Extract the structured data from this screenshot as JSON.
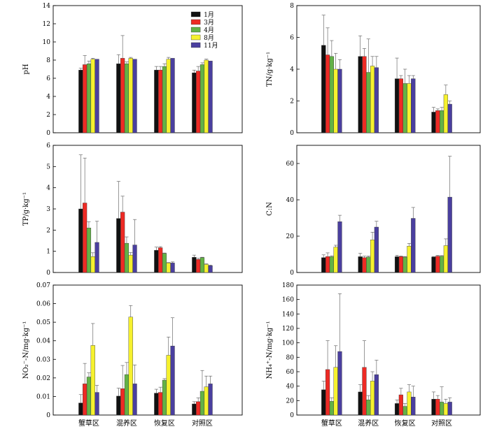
{
  "categories": [
    "蟹草区",
    "混养区",
    "恢复区",
    "对照区"
  ],
  "series_names": [
    "1月",
    "3月",
    "4月",
    "8月",
    "11月"
  ],
  "colors": [
    "#111111",
    "#ee2a24",
    "#63b246",
    "#f6f12e",
    "#4a3f9f"
  ],
  "chart_data": [
    {
      "type": "bar",
      "ylabel": "pH",
      "ylim": [
        0,
        14
      ],
      "yticks": [
        "0",
        "2",
        "4",
        "6",
        "8",
        "10",
        "12",
        "14"
      ],
      "legend": "top-center",
      "categories": [
        "蟹草区",
        "混养区",
        "恢复区",
        "对照区"
      ],
      "series": [
        {
          "name": "1月",
          "values": [
            6.9,
            7.6,
            6.9,
            6.6
          ],
          "errors": [
            0.2,
            1.0,
            0.4,
            0.3
          ]
        },
        {
          "name": "3月",
          "values": [
            7.5,
            8.2,
            6.9,
            6.8
          ],
          "errors": [
            1.0,
            2.5,
            0.4,
            0.5
          ]
        },
        {
          "name": "4月",
          "values": [
            7.6,
            7.6,
            7.3,
            7.5
          ],
          "errors": [
            0.3,
            0.2,
            0.3,
            0.2
          ]
        },
        {
          "name": "8月",
          "values": [
            8.1,
            8.2,
            8.1,
            8.0
          ],
          "errors": [
            0.1,
            0.1,
            0.2,
            0.1
          ]
        },
        {
          "name": "11月",
          "values": [
            8.1,
            8.1,
            8.2,
            7.9
          ],
          "errors": [
            0.0,
            0.0,
            0.0,
            0.0
          ]
        }
      ]
    },
    {
      "type": "bar",
      "ylabel": "TN/g·kg⁻¹",
      "ylim": [
        0,
        8
      ],
      "yticks": [
        "0",
        "2",
        "4",
        "6",
        "8"
      ],
      "categories": [
        "蟹草区",
        "混养区",
        "恢复区",
        "对照区"
      ],
      "series": [
        {
          "name": "1月",
          "values": [
            5.5,
            4.8,
            3.4,
            1.3
          ],
          "errors": [
            1.9,
            1.3,
            1.3,
            0.3
          ]
        },
        {
          "name": "3月",
          "values": [
            4.9,
            4.8,
            3.4,
            1.4
          ],
          "errors": [
            1.7,
            0.5,
            0.2,
            0.1
          ]
        },
        {
          "name": "4月",
          "values": [
            4.8,
            3.8,
            3.1,
            1.4
          ],
          "errors": [
            1.0,
            2.1,
            0.9,
            0.2
          ]
        },
        {
          "name": "8月",
          "values": [
            4.0,
            4.2,
            3.1,
            2.4
          ],
          "errors": [
            1.0,
            0.6,
            0.5,
            0.6
          ]
        },
        {
          "name": "11月",
          "values": [
            4.0,
            4.1,
            3.4,
            1.8
          ],
          "errors": [
            0.6,
            0.7,
            0.2,
            0.2
          ]
        }
      ]
    },
    {
      "type": "bar",
      "ylabel": "TP/g·kg⁻¹",
      "ylim": [
        0,
        6
      ],
      "yticks": [
        "0",
        "1",
        "2",
        "3",
        "4",
        "5",
        "6"
      ],
      "categories": [
        "蟹草区",
        "混养区",
        "恢复区",
        "对照区"
      ],
      "series": [
        {
          "name": "1月",
          "values": [
            3.0,
            2.55,
            1.05,
            0.72
          ],
          "errors": [
            2.55,
            1.75,
            0.15,
            0.1
          ]
        },
        {
          "name": "3月",
          "values": [
            3.28,
            2.85,
            1.17,
            0.62
          ],
          "errors": [
            2.12,
            0.75,
            0.05,
            0.05
          ]
        },
        {
          "name": "4月",
          "values": [
            2.1,
            1.38,
            0.9,
            0.7
          ],
          "errors": [
            0.3,
            0.3,
            0.02,
            0.02
          ]
        },
        {
          "name": "8月",
          "values": [
            0.75,
            0.82,
            0.45,
            0.38
          ],
          "errors": [
            0.18,
            0.12,
            0.02,
            0.03
          ]
        },
        {
          "name": "11月",
          "values": [
            1.42,
            1.3,
            0.45,
            0.32
          ],
          "errors": [
            1.0,
            1.2,
            0.05,
            0.03
          ]
        }
      ]
    },
    {
      "type": "bar",
      "ylabel": "C:N",
      "ylim": [
        0,
        70
      ],
      "yticks": [
        "0",
        "20",
        "40",
        "60"
      ],
      "categories": [
        "蟹草区",
        "混养区",
        "恢复区",
        "对照区"
      ],
      "series": [
        {
          "name": "1月",
          "values": [
            8.2,
            8.7,
            8.7,
            8.5
          ],
          "errors": [
            1.5,
            1.8,
            0.8,
            0.3
          ]
        },
        {
          "name": "3月",
          "values": [
            8.8,
            8.2,
            8.8,
            9.0
          ],
          "errors": [
            2.0,
            0.8,
            0.3,
            0.4
          ]
        },
        {
          "name": "4月",
          "values": [
            8.7,
            8.5,
            8.5,
            9.0
          ],
          "errors": [
            0.5,
            0.5,
            0.3,
            0.3
          ]
        },
        {
          "name": "8月",
          "values": [
            14.0,
            18.0,
            14.5,
            14.8
          ],
          "errors": [
            1.0,
            4.2,
            1.5,
            3.7
          ]
        },
        {
          "name": "11月",
          "values": [
            28.0,
            25.0,
            29.8,
            41.5
          ],
          "errors": [
            3.5,
            3.2,
            6.0,
            22.5
          ]
        }
      ]
    },
    {
      "type": "bar",
      "ylabel": "NO₂⁻-N/mg·kg⁻¹",
      "ylim": [
        0,
        0.07
      ],
      "yticks": [
        "0",
        "0.01",
        "0.02",
        "0.03",
        "0.04",
        "0.05",
        "0.06",
        "0.07"
      ],
      "xaxis": true,
      "categories": [
        "蟹草区",
        "混养区",
        "恢复区",
        "对照区"
      ],
      "series": [
        {
          "name": "1月",
          "values": [
            0.0065,
            0.0102,
            0.0118,
            0.006
          ],
          "errors": [
            0.0045,
            0.0043,
            0.0021,
            0.0012
          ]
        },
        {
          "name": "3月",
          "values": [
            0.0168,
            0.0142,
            0.0122,
            0.0072
          ],
          "errors": [
            0.011,
            0.0125,
            0.0028,
            0.0021
          ]
        },
        {
          "name": "4月",
          "values": [
            0.0205,
            0.0218,
            0.0188,
            0.0128
          ],
          "errors": [
            0.0022,
            0.0065,
            0.0008,
            0.0112
          ]
        },
        {
          "name": "8月",
          "values": [
            0.0375,
            0.0528,
            0.0322,
            0.0152
          ],
          "errors": [
            0.0118,
            0.0062,
            0.0098,
            0.0058
          ]
        },
        {
          "name": "11月",
          "values": [
            0.0122,
            0.0168,
            0.0372,
            0.0168
          ],
          "errors": [
            0.0038,
            0.0102,
            0.0152,
            0.0042
          ]
        }
      ]
    },
    {
      "type": "bar",
      "ylabel": "NH₄⁺-N/mg·kg⁻¹",
      "ylim": [
        0,
        180
      ],
      "yticks": [
        "0",
        "20",
        "40",
        "60",
        "80",
        "100",
        "120",
        "140",
        "160",
        "180"
      ],
      "xaxis": true,
      "categories": [
        "蟹草区",
        "混养区",
        "恢复区",
        "对照区"
      ],
      "series": [
        {
          "name": "1月",
          "values": [
            35,
            32,
            16,
            22
          ],
          "errors": [
            12,
            10,
            5,
            10
          ]
        },
        {
          "name": "3月",
          "values": [
            63,
            66,
            28,
            22
          ],
          "errors": [
            40,
            37,
            9,
            5
          ]
        },
        {
          "name": "4月",
          "values": [
            19,
            21,
            12,
            18
          ],
          "errors": [
            5,
            6,
            4,
            21
          ]
        },
        {
          "name": "8月",
          "values": [
            66,
            47,
            32,
            16
          ],
          "errors": [
            30,
            13,
            10,
            6
          ]
        },
        {
          "name": "11月",
          "values": [
            88,
            56,
            25,
            18
          ],
          "errors": [
            80,
            20,
            15,
            6
          ]
        }
      ]
    }
  ]
}
